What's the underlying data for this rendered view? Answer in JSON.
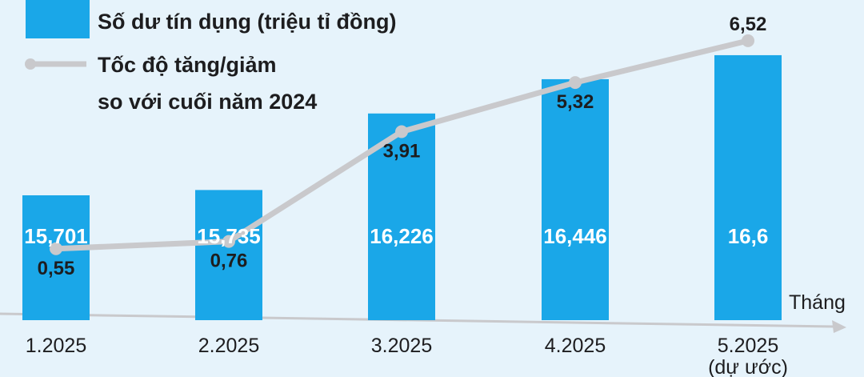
{
  "chart_data": {
    "type": "bar",
    "categories": [
      "1.2025",
      "2.2025",
      "3.2025",
      "4.2025",
      "5.2025"
    ],
    "category_notes": [
      "",
      "",
      "",
      "",
      "(dự ước)"
    ],
    "xlabel": "Tháng",
    "series": [
      {
        "name": "Số dư tín dụng (triệu tỉ đồng)",
        "type": "bar",
        "values": [
          15.701,
          15.735,
          16.226,
          16.446,
          16.6
        ],
        "labels": [
          "15,701",
          "15,735",
          "16,226",
          "16,446",
          "16,6"
        ],
        "color": "#1aa7e8"
      },
      {
        "name": "Tốc độ tăng/giảm so với cuối năm 2024",
        "type": "line",
        "values": [
          0.55,
          0.76,
          3.91,
          5.32,
          6.52
        ],
        "labels": [
          "0,55",
          "0,76",
          "3,91",
          "5,32",
          "6,52"
        ],
        "color": "#c9c9cc"
      }
    ],
    "legend": {
      "position": "top-left",
      "bar_label": "Số dư tín dụng (triệu tỉ đồng)",
      "line_label_lines": [
        "Tốc độ tăng/giảm",
        "so với cuối năm 2024"
      ]
    },
    "bar_ylim": [
      14.9,
      16.8
    ],
    "line_ylim": [
      -1.5,
      7.0
    ],
    "grid": false
  }
}
